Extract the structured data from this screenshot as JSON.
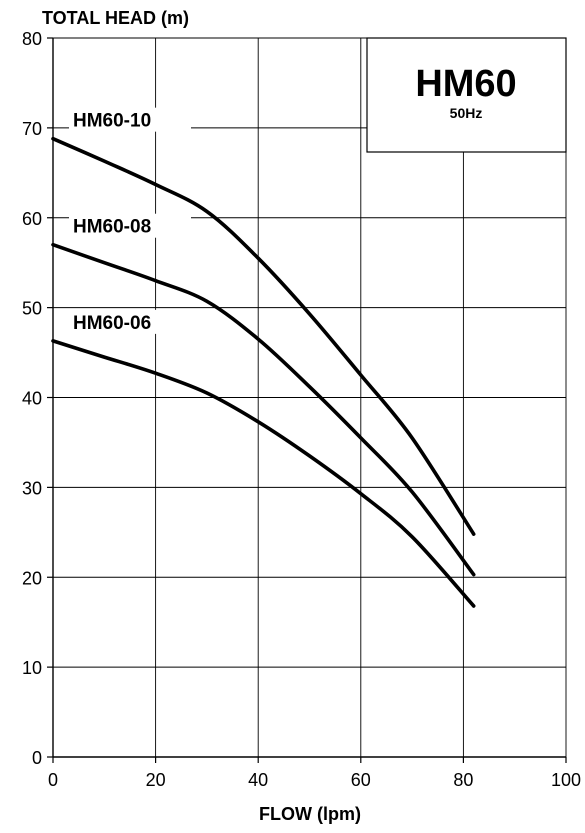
{
  "chart_data": {
    "type": "line",
    "ylabel": "TOTAL HEAD (m)",
    "xlabel": "FLOW (lpm)",
    "xlim": [
      0,
      100
    ],
    "ylim": [
      0,
      80
    ],
    "x_ticks": [
      "0",
      "20",
      "40",
      "60",
      "80",
      "100"
    ],
    "y_ticks": [
      "0",
      "10",
      "20",
      "30",
      "40",
      "50",
      "60",
      "70",
      "80"
    ],
    "grid": true,
    "legend_box": {
      "title": "HM60",
      "subtitle": "50Hz"
    },
    "series": [
      {
        "name": "HM60-10",
        "x": [
          0,
          10,
          20,
          30,
          40,
          50,
          60,
          70,
          82
        ],
        "y": [
          68.8,
          66.3,
          63.7,
          60.7,
          55.5,
          49.3,
          42.5,
          35.5,
          24.8
        ]
      },
      {
        "name": "HM60-08",
        "x": [
          0,
          10,
          20,
          30,
          40,
          50,
          60,
          70,
          82
        ],
        "y": [
          57.0,
          55.0,
          53.0,
          50.7,
          46.5,
          41.2,
          35.5,
          29.5,
          20.3
        ]
      },
      {
        "name": "HM60-06",
        "x": [
          0,
          10,
          20,
          30,
          40,
          50,
          60,
          70,
          82
        ],
        "y": [
          46.3,
          44.5,
          42.7,
          40.5,
          37.3,
          33.5,
          29.3,
          24.5,
          16.8
        ]
      }
    ]
  }
}
